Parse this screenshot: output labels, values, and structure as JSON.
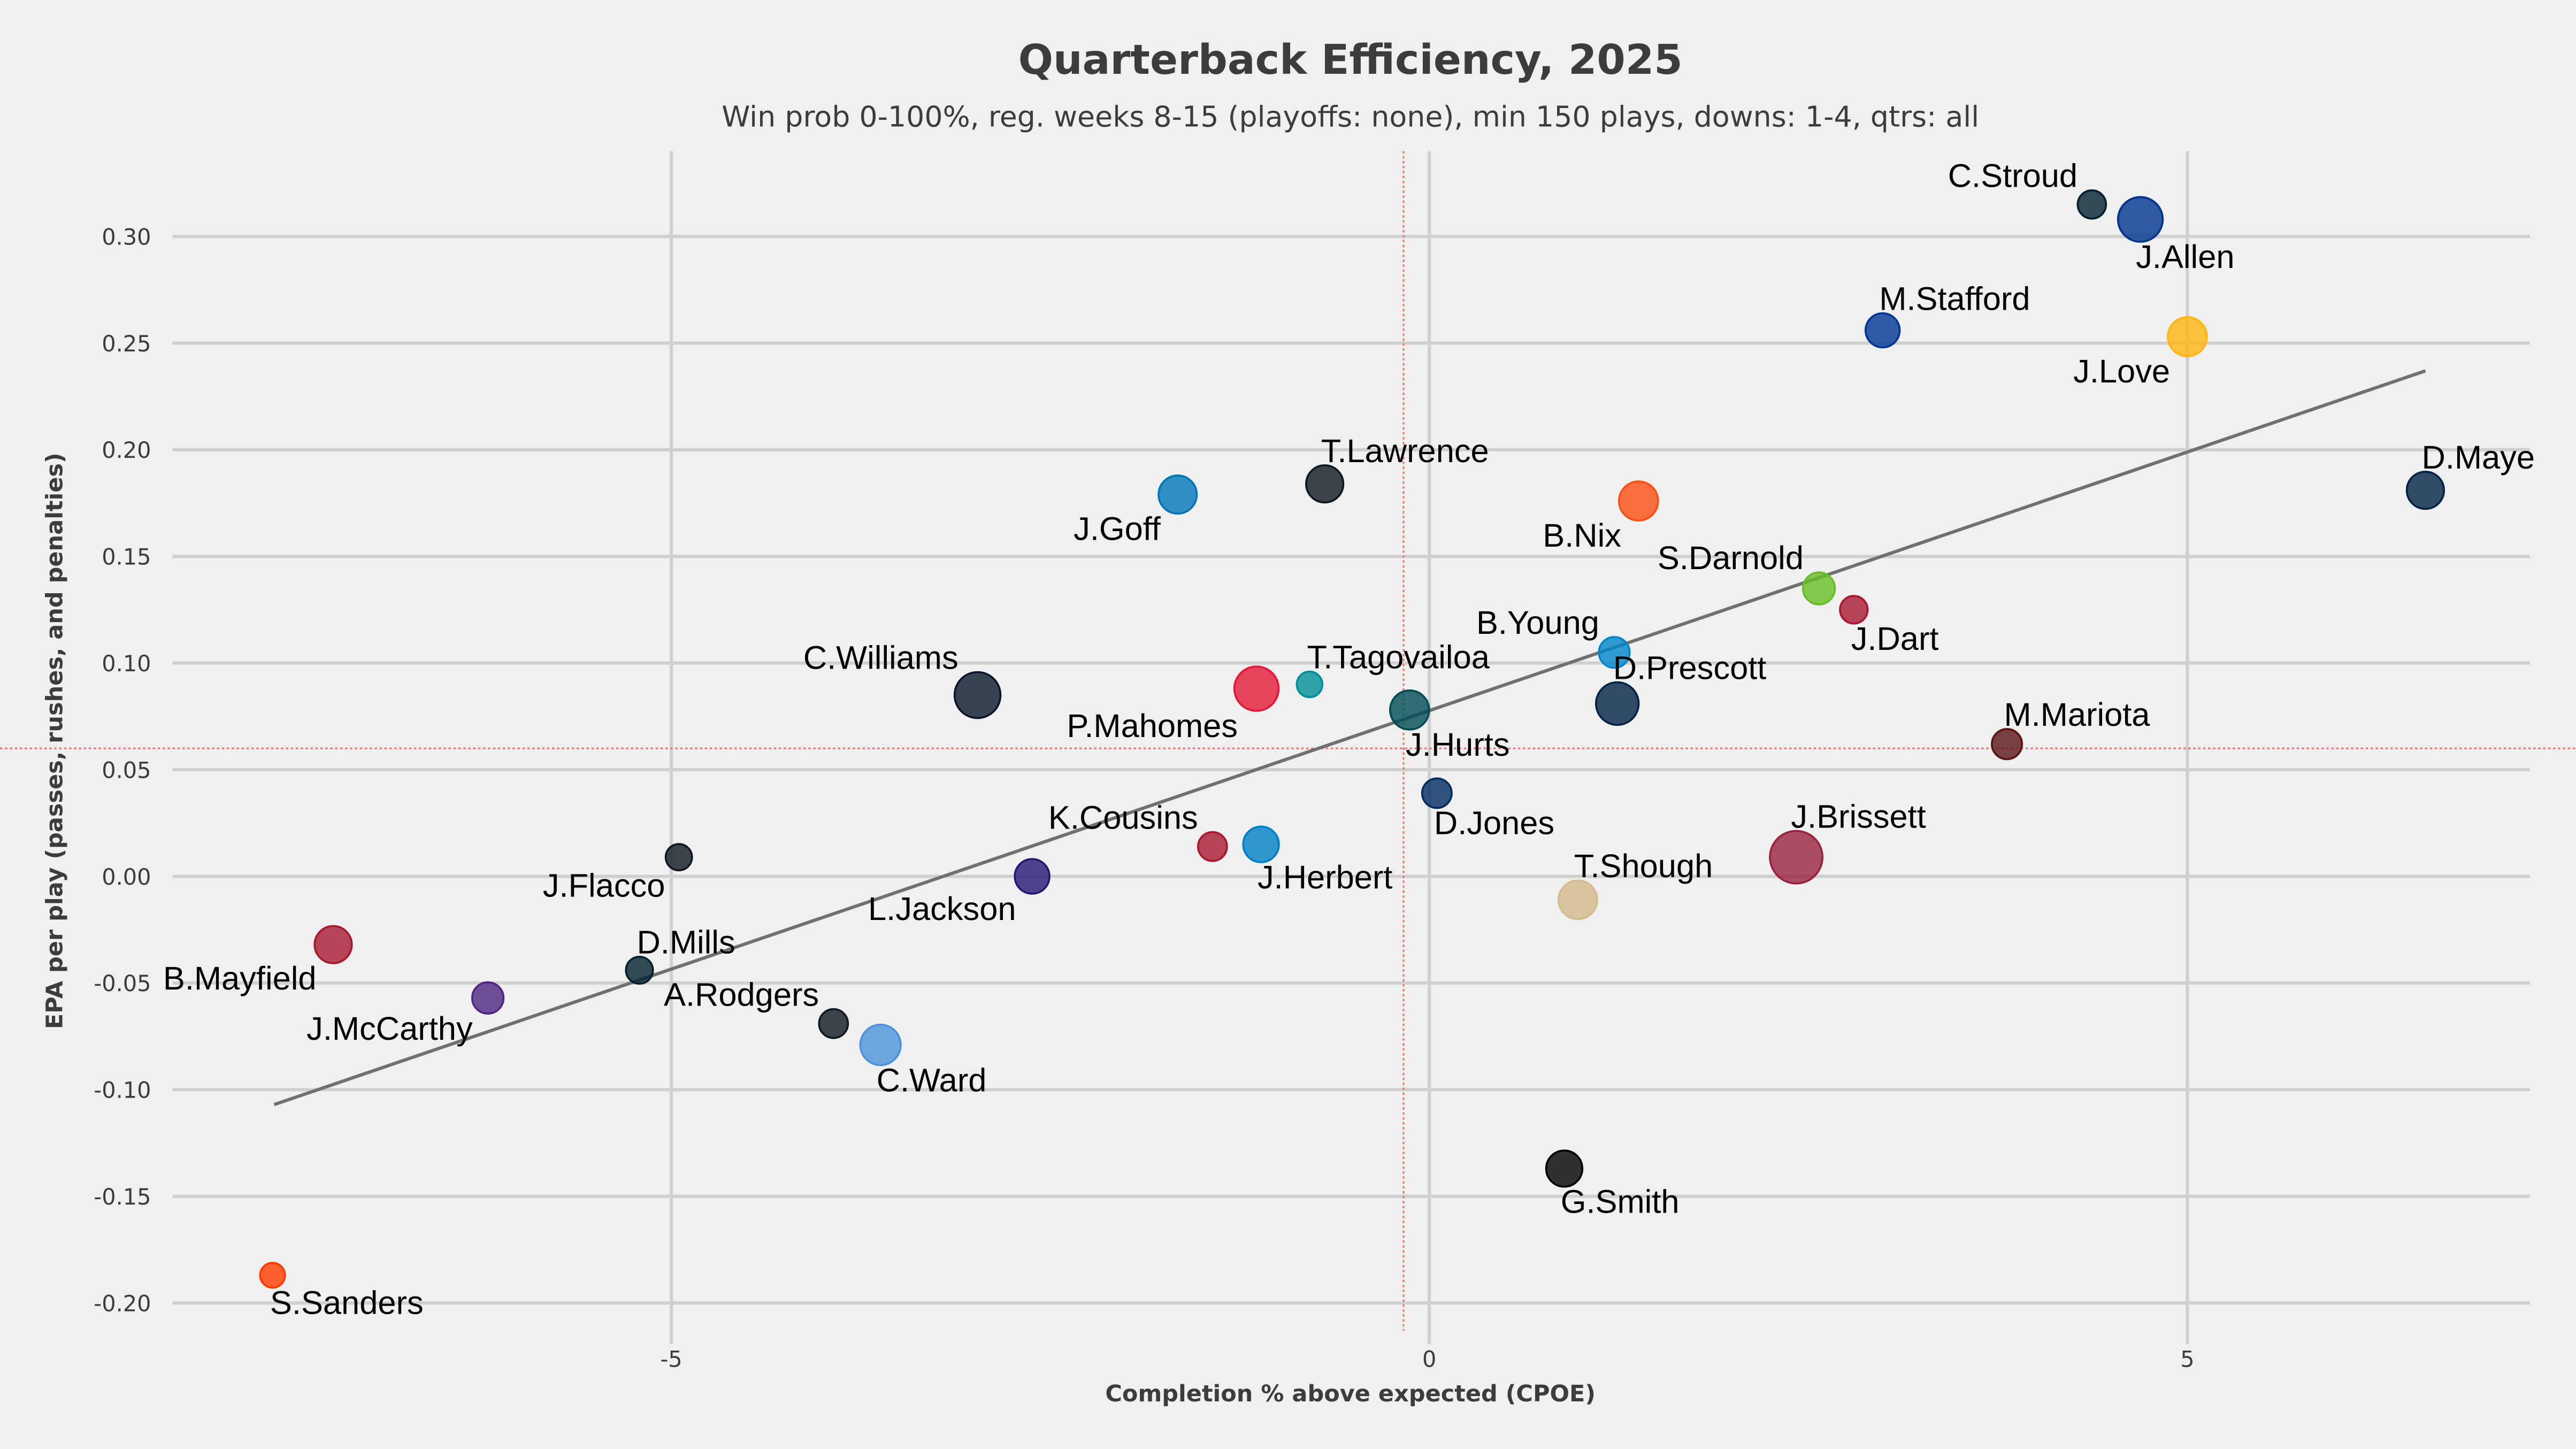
{
  "chart_data": {
    "type": "scatter",
    "title": "Quarterback Efficiency, 2025",
    "subtitle": "Win prob 0-100%, reg. weeks 8-15 (playoffs: none), min 150 plays, downs: 1-4, qtrs: all",
    "xlabel": "Completion % above expected (CPOE)",
    "ylabel": "EPA per play (passes, rushes, and penalties)",
    "xlim": [
      -8.29,
      7.26
    ],
    "ylim": [
      -0.213,
      0.34
    ],
    "xticks": [
      -5,
      0,
      5
    ],
    "xtick_labels": [
      "-5",
      "0",
      "5"
    ],
    "yticks": [
      -0.2,
      -0.15,
      -0.1,
      -0.05,
      0.0,
      0.05,
      0.1,
      0.15,
      0.2,
      0.25,
      0.3
    ],
    "ytick_labels": [
      "-0.20",
      "-0.15",
      "-0.10",
      "-0.05",
      "0.00",
      "0.05",
      "0.10",
      "0.15",
      "0.20",
      "0.25",
      "0.30"
    ],
    "grid": true,
    "mean_lines": {
      "x": -0.17,
      "y": 0.06,
      "color": "#f07070"
    },
    "trend_line": {
      "x": [
        -7.62,
        6.57
      ],
      "y": [
        -0.107,
        0.237
      ],
      "color": "#707070"
    },
    "points": [
      {
        "name": "C.Stroud",
        "x": 4.37,
        "y": 0.315,
        "size": 2.2,
        "color": "#03202f",
        "label_pos": "top-left"
      },
      {
        "name": "J.Allen",
        "x": 4.69,
        "y": 0.308,
        "size": 5.5,
        "color": "#00338d",
        "label_pos": "bottom-right"
      },
      {
        "name": "M.Stafford",
        "x": 2.99,
        "y": 0.256,
        "size": 3.2,
        "color": "#003594",
        "label_pos": "top-right"
      },
      {
        "name": "J.Love",
        "x": 5.0,
        "y": 0.253,
        "size": 4.2,
        "color": "#ffb612",
        "label_pos": "bottom-left"
      },
      {
        "name": "D.Maye",
        "x": 6.57,
        "y": 0.181,
        "size": 3.8,
        "color": "#002244",
        "label_pos": "top-right"
      },
      {
        "name": "T.Lawrence",
        "x": -0.69,
        "y": 0.184,
        "size": 3.8,
        "color": "#101820",
        "label_pos": "top-right"
      },
      {
        "name": "J.Goff",
        "x": -1.66,
        "y": 0.179,
        "size": 4.0,
        "color": "#0076b6",
        "label_pos": "bottom-left"
      },
      {
        "name": "B.Nix",
        "x": 1.38,
        "y": 0.176,
        "size": 4.2,
        "color": "#fb4f14",
        "label_pos": "bottom-left"
      },
      {
        "name": "S.Darnold",
        "x": 2.57,
        "y": 0.135,
        "size": 2.8,
        "color": "#69be28",
        "label_pos": "top-left"
      },
      {
        "name": "J.Dart",
        "x": 2.8,
        "y": 0.125,
        "size": 2.1,
        "color": "#a71930",
        "label_pos": "bottom-right"
      },
      {
        "name": "B.Young",
        "x": 1.22,
        "y": 0.105,
        "size": 2.6,
        "color": "#0085ca",
        "label_pos": "top-left"
      },
      {
        "name": "D.Prescott",
        "x": 1.24,
        "y": 0.081,
        "size": 5.0,
        "color": "#002244",
        "label_pos": "top-right"
      },
      {
        "name": "C.Williams",
        "x": -2.98,
        "y": 0.085,
        "size": 5.8,
        "color": "#0b162a",
        "label_pos": "top-left"
      },
      {
        "name": "P.Mahomes",
        "x": -1.14,
        "y": 0.088,
        "size": 5.4,
        "color": "#e31837",
        "label_pos": "bottom-left"
      },
      {
        "name": "T.Tagovailoa",
        "x": -0.79,
        "y": 0.09,
        "size": 1.8,
        "color": "#008e97",
        "label_pos": "top-right"
      },
      {
        "name": "J.Hurts",
        "x": -0.13,
        "y": 0.078,
        "size": 4.2,
        "color": "#004c54",
        "label_pos": "bottom-right"
      },
      {
        "name": "M.Mariota",
        "x": 3.81,
        "y": 0.062,
        "size": 2.5,
        "color": "#5a1414",
        "label_pos": "top-right"
      },
      {
        "name": "D.Jones",
        "x": 0.05,
        "y": 0.039,
        "size": 2.4,
        "color": "#002c5f",
        "label_pos": "bottom-right"
      },
      {
        "name": "K.Cousins",
        "x": -1.43,
        "y": 0.014,
        "size": 2.3,
        "color": "#a71930",
        "label_pos": "top-left"
      },
      {
        "name": "J.Herbert",
        "x": -1.11,
        "y": 0.015,
        "size": 3.5,
        "color": "#0080c6",
        "label_pos": "bottom-right"
      },
      {
        "name": "J.Flacco",
        "x": -4.95,
        "y": 0.009,
        "size": 1.9,
        "color": "#101820",
        "label_pos": "bottom-left"
      },
      {
        "name": "J.Brissett",
        "x": 2.42,
        "y": 0.009,
        "size": 7.6,
        "color": "#97233f",
        "label_pos": "top-right"
      },
      {
        "name": "L.Jackson",
        "x": -2.62,
        "y": 0.0,
        "size": 3.3,
        "color": "#241773",
        "label_pos": "bottom-left"
      },
      {
        "name": "T.Shough",
        "x": 0.98,
        "y": -0.011,
        "size": 4.1,
        "color": "#d3bc8d",
        "label_pos": "top-right"
      },
      {
        "name": "B.Mayfield",
        "x": -7.23,
        "y": -0.032,
        "size": 3.8,
        "color": "#a71930",
        "label_pos": "bottom-left"
      },
      {
        "name": "D.Mills",
        "x": -5.21,
        "y": -0.044,
        "size": 2.0,
        "color": "#03202f",
        "label_pos": "top-right"
      },
      {
        "name": "J.McCarthy",
        "x": -6.21,
        "y": -0.057,
        "size": 2.7,
        "color": "#4f2683",
        "label_pos": "bottom-left"
      },
      {
        "name": "A.Rodgers",
        "x": -3.93,
        "y": -0.069,
        "size": 2.3,
        "color": "#101820",
        "label_pos": "top-left"
      },
      {
        "name": "C.Ward",
        "x": -3.62,
        "y": -0.079,
        "size": 4.5,
        "color": "#4b92db",
        "label_pos": "bottom-right"
      },
      {
        "name": "G.Smith",
        "x": 0.89,
        "y": -0.137,
        "size": 3.6,
        "color": "#000000",
        "label_pos": "bottom-right"
      },
      {
        "name": "S.Sanders",
        "x": -7.63,
        "y": -0.187,
        "size": 1.7,
        "color": "#ff3c00",
        "label_pos": "bottom-right"
      }
    ]
  }
}
